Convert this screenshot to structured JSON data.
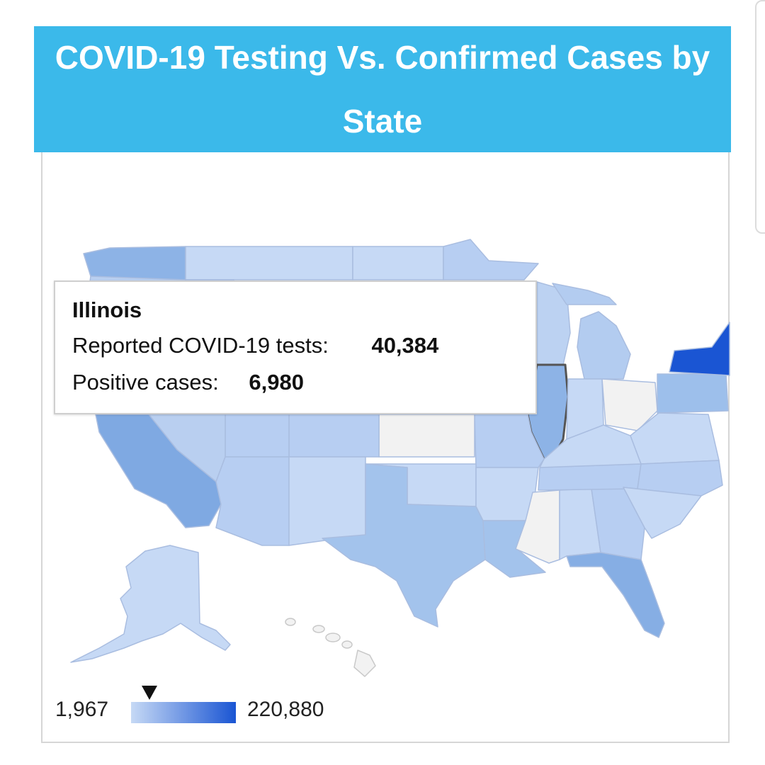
{
  "header": {
    "title": "COVID-19 Testing Vs. Confirmed Cases by State"
  },
  "map": {
    "type": "choropleth",
    "region": "United States",
    "no_data_color": "#f2f2f2",
    "color_low": "#c6d9f5",
    "color_high": "#1a55d3",
    "highlighted_state": "Illinois"
  },
  "tooltip": {
    "state": "Illinois",
    "tests_label": "Reported COVID-19 tests:",
    "tests_value": "40,384",
    "positive_label": "Positive cases:",
    "positive_value": "6,980"
  },
  "legend": {
    "min": "1,967",
    "max": "220,880",
    "marker_value": 40384
  },
  "colors": {
    "header_bg": "#3bb9ea",
    "header_text": "#ffffff",
    "card_border": "#d6d6d6"
  }
}
